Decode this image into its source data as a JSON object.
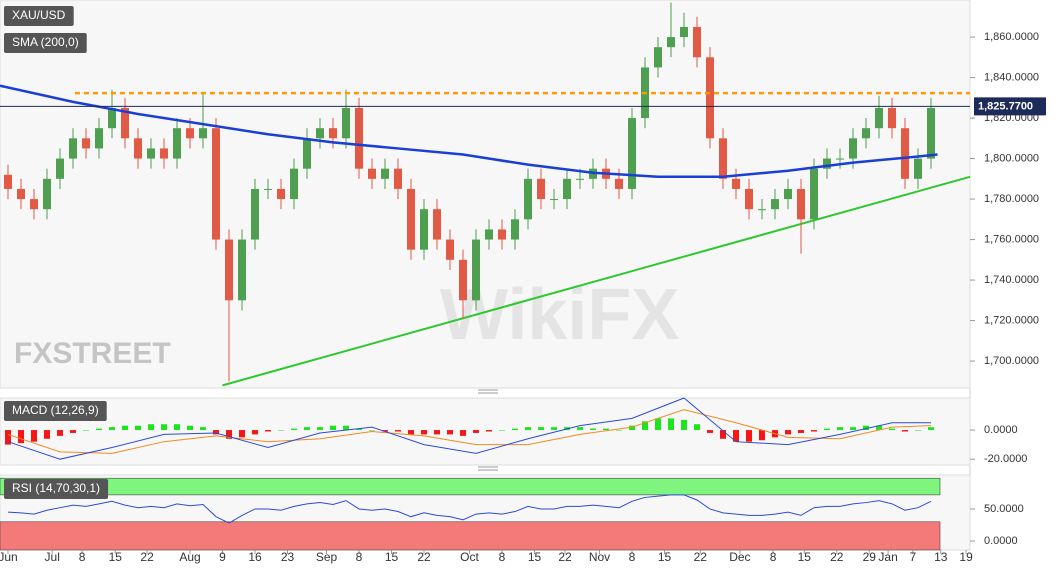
{
  "chart_data": [
    {
      "type": "candlestick",
      "title": "XAU/USD",
      "x": [
        0,
        2,
        4,
        6,
        8,
        10,
        12,
        14,
        16,
        18,
        20,
        22,
        24,
        26,
        28,
        30,
        32,
        34,
        36,
        38,
        40,
        42,
        44,
        46,
        48,
        50,
        52,
        54,
        56,
        58,
        60,
        62,
        64,
        66,
        68,
        70,
        72,
        74,
        76,
        78,
        80,
        82,
        84,
        86,
        88,
        90,
        92,
        94,
        96,
        98,
        100,
        102,
        104,
        106,
        108,
        110,
        112,
        114,
        116,
        118,
        120,
        122,
        124,
        126,
        128,
        130,
        132,
        134,
        136,
        138,
        140,
        142
      ],
      "open": [
        1792,
        1785,
        1780,
        1775,
        1790,
        1800,
        1810,
        1805,
        1815,
        1825,
        1810,
        1800,
        1805,
        1800,
        1815,
        1810,
        1815,
        1760,
        1730,
        1760,
        1785,
        1785,
        1780,
        1795,
        1810,
        1815,
        1810,
        1825,
        1795,
        1790,
        1795,
        1785,
        1755,
        1775,
        1760,
        1750,
        1730,
        1760,
        1765,
        1760,
        1770,
        1790,
        1780,
        1780,
        1790,
        1790,
        1795,
        1790,
        1785,
        1820,
        1845,
        1855,
        1860,
        1865,
        1850,
        1810,
        1790,
        1785,
        1775,
        1775,
        1780,
        1785,
        1770,
        1795,
        1800,
        1800,
        1810,
        1815,
        1825,
        1815,
        1790,
        1800
      ],
      "high": [
        1797,
        1790,
        1785,
        1795,
        1805,
        1815,
        1815,
        1820,
        1834,
        1830,
        1815,
        1810,
        1810,
        1820,
        1820,
        1833,
        1820,
        1765,
        1765,
        1790,
        1790,
        1790,
        1800,
        1815,
        1820,
        1820,
        1834,
        1830,
        1800,
        1800,
        1800,
        1790,
        1780,
        1780,
        1765,
        1755,
        1765,
        1770,
        1770,
        1775,
        1795,
        1795,
        1785,
        1795,
        1795,
        1800,
        1800,
        1795,
        1825,
        1850,
        1860,
        1877,
        1872,
        1870,
        1855,
        1815,
        1795,
        1790,
        1780,
        1785,
        1790,
        1790,
        1800,
        1805,
        1805,
        1815,
        1820,
        1831,
        1830,
        1820,
        1805,
        1830
      ],
      "low": [
        1780,
        1775,
        1770,
        1770,
        1785,
        1795,
        1800,
        1800,
        1810,
        1805,
        1795,
        1795,
        1795,
        1795,
        1805,
        1805,
        1755,
        1690,
        1725,
        1755,
        1780,
        1775,
        1775,
        1790,
        1805,
        1805,
        1805,
        1790,
        1785,
        1785,
        1780,
        1750,
        1750,
        1755,
        1745,
        1721,
        1725,
        1755,
        1755,
        1755,
        1765,
        1775,
        1775,
        1775,
        1785,
        1785,
        1785,
        1780,
        1780,
        1815,
        1840,
        1850,
        1855,
        1845,
        1805,
        1785,
        1780,
        1770,
        1770,
        1770,
        1775,
        1753,
        1765,
        1790,
        1795,
        1795,
        1805,
        1810,
        1810,
        1785,
        1785,
        1795
      ],
      "close": [
        1785,
        1780,
        1775,
        1790,
        1800,
        1810,
        1805,
        1815,
        1825,
        1810,
        1800,
        1805,
        1800,
        1815,
        1810,
        1815,
        1760,
        1730,
        1760,
        1785,
        1785,
        1780,
        1795,
        1810,
        1815,
        1810,
        1825,
        1795,
        1790,
        1795,
        1785,
        1755,
        1775,
        1760,
        1750,
        1730,
        1760,
        1765,
        1760,
        1770,
        1790,
        1780,
        1780,
        1790,
        1790,
        1795,
        1790,
        1785,
        1820,
        1845,
        1855,
        1860,
        1865,
        1850,
        1810,
        1790,
        1785,
        1775,
        1775,
        1780,
        1785,
        1770,
        1795,
        1800,
        1800,
        1810,
        1815,
        1825,
        1815,
        1790,
        1800,
        1825
      ],
      "up_color": "#4e9f50",
      "down_color": "#e15a45",
      "series": [
        {
          "name": "SMA (200,0)",
          "color": "#1a3fd6",
          "x": [
            -1.23,
            10,
            20,
            30,
            40,
            50,
            60,
            70,
            80,
            90,
            100,
            110,
            120,
            130,
            140,
            143
          ],
          "values": [
            1836,
            1828,
            1822,
            1817,
            1812,
            1808,
            1805,
            1802,
            1797,
            1793,
            1791,
            1791,
            1794,
            1798,
            1801,
            1802
          ]
        }
      ],
      "resistance": {
        "x": [
          10.3,
          148
        ],
        "value": 1832.3,
        "color": "#ff9900"
      },
      "trendline": {
        "x": [
          33,
          148
        ],
        "values": [
          1688,
          1791
        ],
        "color": "#2ec82e"
      },
      "last_price": {
        "value": 1825.77,
        "label": "1,825.7700",
        "color": "#1c2b5a"
      },
      "watermarks": [
        "FXSTREET",
        "WikiFX"
      ],
      "xlim": [
        -1.23,
        148
      ],
      "ylim": [
        1686.7,
        1878.3
      ],
      "yticks": [
        {
          "value": 1700,
          "label": "1,700.0000"
        },
        {
          "value": 1720,
          "label": "1,720.0000"
        },
        {
          "value": 1740,
          "label": "1,740.0000"
        },
        {
          "value": 1760,
          "label": "1,760.0000"
        },
        {
          "value": 1780,
          "label": "1,780.0000"
        },
        {
          "value": 1800,
          "label": "1,800.0000"
        },
        {
          "value": 1820,
          "label": "1,820.0000"
        },
        {
          "value": 1840,
          "label": "1,840.0000"
        },
        {
          "value": 1860,
          "label": "1,860.0000"
        }
      ]
    },
    {
      "type": "macd",
      "title": "MACD (12,26,9)",
      "histogram": [
        -10,
        -9,
        -8,
        -6,
        -4,
        -2,
        0,
        1,
        2,
        3,
        3,
        4,
        4,
        4,
        3,
        2,
        -3,
        -6,
        -5,
        -3,
        -1,
        0,
        1,
        2,
        2,
        3,
        3,
        1,
        0,
        -1,
        -1,
        -3,
        -3,
        -3,
        -3,
        -4,
        -2,
        -1,
        0,
        1,
        2,
        2,
        2,
        2,
        2,
        1,
        1,
        0,
        3,
        6,
        8,
        8,
        7,
        4,
        -2,
        -6,
        -8,
        -8,
        -7,
        -5,
        -3,
        -2,
        -1,
        1,
        2,
        2,
        3,
        3,
        1,
        -1,
        0,
        2
      ],
      "pos_color": "#1de51d",
      "neg_color": "#f51616",
      "macd_line": {
        "color": "#2a4bd7",
        "x": [
          0,
          8,
          16,
          24,
          32,
          40,
          48,
          56,
          64,
          72,
          80,
          88,
          96,
          104,
          112,
          120,
          128,
          136,
          142
        ],
        "values": [
          -8,
          -20,
          -12,
          -3,
          -2,
          -12,
          -2,
          2,
          -10,
          -16,
          -6,
          3,
          8,
          22,
          -8,
          -10,
          -3,
          5,
          5
        ]
      },
      "signal_line": {
        "color": "#f08a24",
        "x": [
          0,
          8,
          16,
          24,
          32,
          40,
          48,
          56,
          64,
          72,
          80,
          88,
          96,
          104,
          112,
          120,
          128,
          136,
          142
        ],
        "values": [
          -3,
          -15,
          -16,
          -8,
          -4,
          -8,
          -6,
          -1,
          -4,
          -10,
          -10,
          -3,
          2,
          14,
          5,
          -5,
          -6,
          2,
          3
        ]
      },
      "ylim": [
        -24,
        22
      ],
      "yticks": [
        {
          "value": 0,
          "label": "0.0000"
        },
        {
          "value": -20,
          "label": "-20.0000"
        }
      ]
    },
    {
      "type": "rsi",
      "title": "RSI (14,70,30,1)",
      "values": [
        45,
        44,
        42,
        48,
        52,
        56,
        54,
        58,
        62,
        56,
        52,
        54,
        52,
        58,
        55,
        57,
        38,
        28,
        40,
        50,
        50,
        48,
        54,
        58,
        60,
        57,
        63,
        50,
        48,
        50,
        46,
        38,
        44,
        40,
        38,
        33,
        42,
        44,
        42,
        46,
        54,
        50,
        50,
        54,
        54,
        56,
        54,
        52,
        62,
        68,
        70,
        72,
        72,
        64,
        50,
        44,
        42,
        40,
        40,
        42,
        45,
        40,
        52,
        54,
        54,
        58,
        60,
        63,
        58,
        48,
        52,
        62
      ],
      "color": "#2a4bd7",
      "bands": [
        {
          "from": 72,
          "to": 98,
          "color": "#7ef57e"
        },
        {
          "from": -14,
          "to": 30,
          "color": "#f47a7a"
        }
      ],
      "ylim": [
        -14,
        103
      ],
      "yticks": [
        {
          "value": 0,
          "label": "0.0000"
        },
        {
          "value": 50,
          "label": "50.0000"
        }
      ],
      "xticks": [
        {
          "value": 0,
          "label": "Jun"
        },
        {
          "value": 6.8,
          "label": "Jul"
        },
        {
          "value": 11.4,
          "label": "8"
        },
        {
          "value": 16.5,
          "label": "15"
        },
        {
          "value": 21.4,
          "label": "22"
        },
        {
          "value": 28,
          "label": "Aug"
        },
        {
          "value": 33,
          "label": "9"
        },
        {
          "value": 38,
          "label": "16"
        },
        {
          "value": 43,
          "label": "23"
        },
        {
          "value": 49,
          "label": "Sep"
        },
        {
          "value": 54,
          "label": "8"
        },
        {
          "value": 59,
          "label": "15"
        },
        {
          "value": 64,
          "label": "22"
        },
        {
          "value": 71,
          "label": "Oct"
        },
        {
          "value": 76,
          "label": "8"
        },
        {
          "value": 81,
          "label": "15"
        },
        {
          "value": 85.7,
          "label": "22"
        },
        {
          "value": 91,
          "label": "Nov"
        },
        {
          "value": 96,
          "label": "8"
        },
        {
          "value": 101,
          "label": "15"
        },
        {
          "value": 106.5,
          "label": "22"
        },
        {
          "value": 112.6,
          "label": "Dec"
        },
        {
          "value": 117.7,
          "label": "8"
        },
        {
          "value": 122.5,
          "label": "15"
        },
        {
          "value": 127.5,
          "label": "22"
        },
        {
          "value": 132.5,
          "label": "29"
        },
        {
          "value": 135.4,
          "label": "Jan"
        },
        {
          "value": 139.2,
          "label": "7"
        },
        {
          "value": 143.5,
          "label": "13"
        },
        {
          "value": 147.4,
          "label": "19"
        }
      ]
    }
  ]
}
